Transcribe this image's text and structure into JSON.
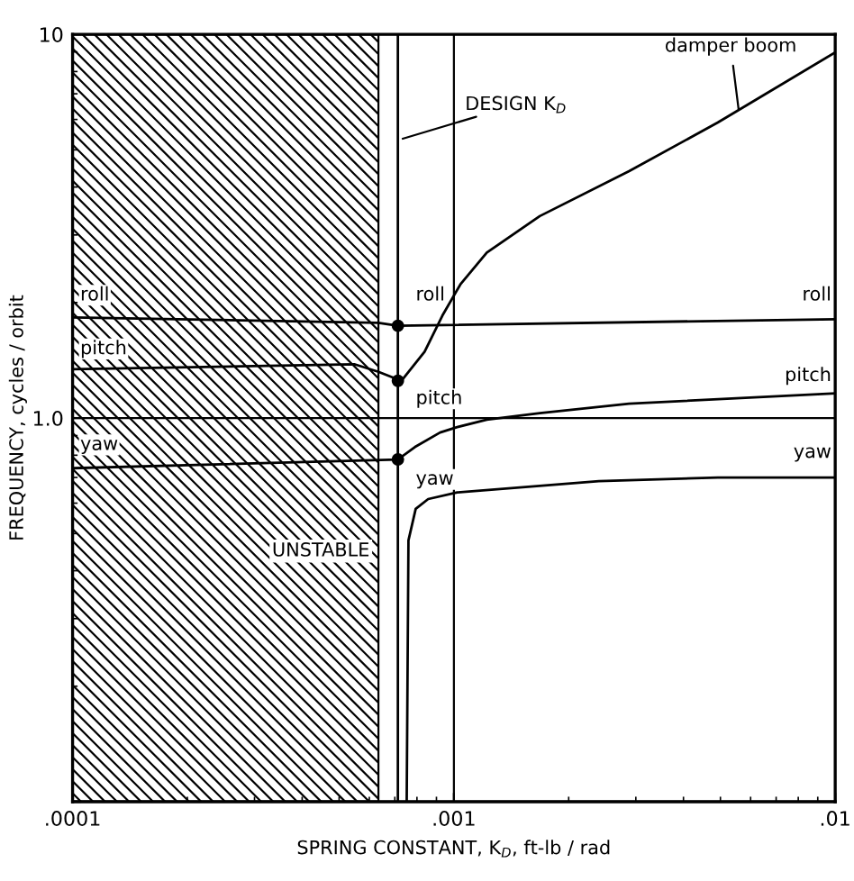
{
  "chart_data": {
    "type": "line",
    "xlabel": "SPRING CONSTANT, K$_{D}$, ft-lb / rad",
    "ylabel": "FREQUENCY, cycles / orbit",
    "log": "xy",
    "xlim": [
      0.0001,
      0.01
    ],
    "ylim": [
      0.1,
      10
    ],
    "xticks": [
      {
        "value": 0.0001,
        "label": ".0001"
      },
      {
        "value": 0.001,
        "label": ".001"
      },
      {
        "value": 0.01,
        "label": ".01"
      }
    ],
    "yticks": [
      {
        "value": 0.1,
        "label": null
      },
      {
        "value": 1,
        "label": "1.0"
      },
      10
    ],
    "grid": true,
    "series": [
      {
        "color": "#000000",
        "x": [
          0.0001,
          0.000634,
          0.000713,
          0.01
        ],
        "values": [
          1.83,
          1.77,
          1.74,
          1.81
        ]
      },
      {
        "color": "#000000",
        "x": [
          0.0001,
          0.00055,
          0.000634,
          0.000728,
          0.000838,
          0.000933,
          0.00104,
          0.00122,
          0.00168,
          0.00288,
          0.00492,
          0.01
        ],
        "values": [
          1.34,
          1.38,
          1.32,
          1.25,
          1.49,
          1.85,
          2.23,
          2.7,
          3.36,
          4.4,
          5.89,
          8.98
        ]
      },
      {
        "color": "#000000",
        "x": [
          0.0001,
          0.000713,
          0.00079,
          0.00092,
          0.00102,
          0.00122,
          0.00168,
          0.00288,
          0.01
        ],
        "values": [
          0.74,
          0.78,
          0.84,
          0.917,
          0.947,
          0.99,
          1.03,
          1.09,
          1.16
        ]
      },
      {
        "color": "#000000",
        "x": [
          0.000752,
          0.00076,
          0.000794,
          0.000856,
          0.00102,
          0.0024,
          0.00492,
          0.01
        ],
        "values": [
          0.1,
          0.48,
          0.58,
          0.615,
          0.64,
          0.685,
          0.7,
          0.7
        ]
      },
      {
        "type": "scatter",
        "marker": "circle",
        "color": "#000000",
        "x": [
          0.000713,
          0.000713,
          0.000713
        ],
        "values": [
          1.74,
          1.25,
          0.78
        ]
      }
    ],
    "ref_lines": [
      {
        "axis": "x",
        "value": 0.000713,
        "label": "DESIGN K$_{D}$"
      }
    ],
    "bands": [
      {
        "axis": "x",
        "from": 0.0001,
        "to": 0.000634,
        "label": "UNSTABLE"
      }
    ],
    "annotations": [
      {
        "text": "damper boom",
        "x": 0.0056,
        "y": 6.2
      },
      "roll",
      "pitch",
      "yaw",
      "roll",
      "pitch",
      "yaw",
      "roll",
      "pitch",
      "yaw"
    ]
  }
}
